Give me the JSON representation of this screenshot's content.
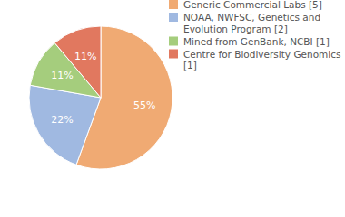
{
  "chart_data": {
    "type": "pie",
    "categories": [
      "Generic Commercial Labs [5]",
      "NOAA, NWFSC, Genetics and Evolution Program [2]",
      "Mined from GenBank, NCBI [1]",
      "Centre for Biodiversity Genomics [1]"
    ],
    "values": [
      55,
      22,
      11,
      11
    ],
    "value_labels": [
      "55%",
      "22%",
      "11%",
      "11%"
    ],
    "colors": [
      "#f0aa73",
      "#a0b9e1",
      "#a5cd7d",
      "#e1785f"
    ],
    "data_labels": true,
    "legend": "top-right"
  }
}
